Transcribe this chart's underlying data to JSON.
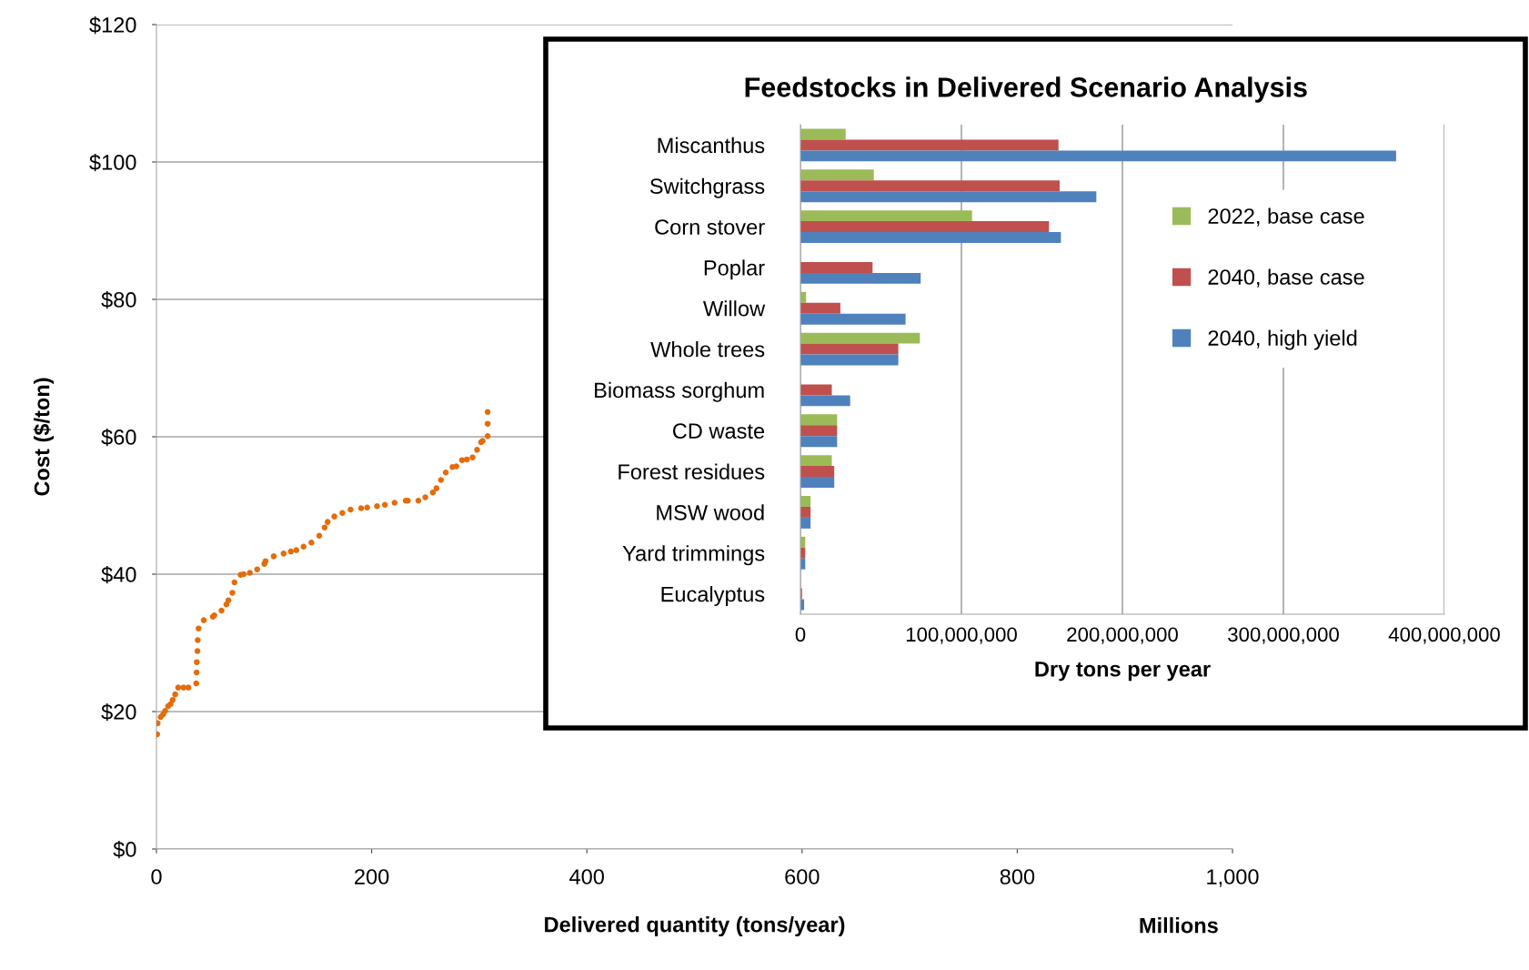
{
  "chart_data": [
    {
      "type": "scatter",
      "xlabel": "Delivered quantity (tons/year)",
      "ylabel": "Cost ($/ton)",
      "annotations": [
        "Millions"
      ],
      "xlim": [
        0,
        1000
      ],
      "ylim": [
        0,
        120
      ],
      "xticks": [
        0,
        200,
        400,
        600,
        800,
        {
          "value": 1000,
          "label": "1,000"
        }
      ],
      "yticks": [
        {
          "value": 0,
          "label": "$0"
        },
        {
          "value": 20,
          "label": "$20"
        },
        {
          "value": 40,
          "label": "$40"
        },
        {
          "value": 60,
          "label": "$60"
        },
        {
          "value": 80,
          "label": "$80"
        },
        {
          "value": 100,
          "label": "$100"
        },
        {
          "value": 120,
          "label": "$120"
        }
      ],
      "grid": "y",
      "marker": "circle",
      "legend": false,
      "series": [
        {
          "color": "#e46c0a",
          "x": [
            0.6,
            1.1,
            3.9,
            6.2,
            8.1,
            10.9,
            13.2,
            15.1,
            17.4,
            20.2,
            25.2,
            29.7,
            37.0,
            37.3,
            37.5,
            38.1,
            38.4,
            39.2,
            44.0,
            52.4,
            53.8,
            60.5,
            65.0,
            66.9,
            70.6,
            72.5,
            78.2,
            81.0,
            86.8,
            93.6,
            100.3,
            101.4,
            109.0,
            118.2,
            124.9,
            130.0,
            136.7,
            144.0,
            151.3,
            156.3,
            159.1,
            165.3,
            172.8,
            180.4,
            190.2,
            195.8,
            205.0,
            212.3,
            221.3,
            231.7,
            233.6,
            243.4,
            249.9,
            256.9,
            260.2,
            264.4,
            268.9,
            275.1,
            278.7,
            284.0,
            288.5,
            293.8,
            298.0,
            301.7,
            303.1,
            307.8,
            307.8,
            307.8
          ],
          "values": [
            16.7,
            18.3,
            19.2,
            19.6,
            20.1,
            20.8,
            21.1,
            21.7,
            22.5,
            23.5,
            23.5,
            23.5,
            24.1,
            25.7,
            27.2,
            28.8,
            30.4,
            32.1,
            33.3,
            33.8,
            34.0,
            34.7,
            35.6,
            36.2,
            37.3,
            38.8,
            39.9,
            40.0,
            40.2,
            40.7,
            41.5,
            41.9,
            42.6,
            43.0,
            43.3,
            43.5,
            44.0,
            44.6,
            45.6,
            46.8,
            47.6,
            48.4,
            48.9,
            49.4,
            49.6,
            49.7,
            49.9,
            50.1,
            50.4,
            50.7,
            50.7,
            50.7,
            51.2,
            51.9,
            52.5,
            53.7,
            54.8,
            55.6,
            55.7,
            56.6,
            56.7,
            57.0,
            58.1,
            59.2,
            59.4,
            60.1,
            61.9,
            63.6
          ]
        }
      ]
    },
    {
      "type": "bar",
      "orientation": "horizontal",
      "title": "Feedstocks in Delivered Scenario Analysis",
      "xlabel": "Dry tons per year",
      "categories": [
        "Miscanthus",
        "Switchgrass",
        "Corn stover",
        "Poplar",
        "Willow",
        "Whole trees",
        "Biomass sorghum",
        "CD waste",
        "Forest residues",
        "MSW wood",
        "Yard trimmings",
        "Eucalyptus"
      ],
      "xlim": [
        0,
        400000000
      ],
      "xticks": [
        0,
        {
          "value": 100000000,
          "label": "100,000,000"
        },
        {
          "value": 200000000,
          "label": "200,000,000"
        },
        {
          "value": 300000000,
          "label": "300,000,000"
        },
        {
          "value": 400000000,
          "label": "400,000,000"
        }
      ],
      "grid": "x",
      "legend": "right",
      "series": [
        {
          "name": "2022, base case",
          "color": "#9bbb59",
          "values": [
            28100000,
            45600000,
            106600000,
            0,
            3500000,
            74200000,
            0,
            22800000,
            19500000,
            6300000,
            3000000,
            0
          ]
        },
        {
          "name": "2040, base case",
          "color": "#c0504d",
          "values": [
            160300000,
            161000000,
            154400000,
            44800000,
            24800000,
            60800000,
            19500000,
            22800000,
            21000000,
            6300000,
            3000000,
            1000000
          ]
        },
        {
          "name": "2040, high yield",
          "color": "#4f81bd",
          "values": [
            370000000,
            183800000,
            161800000,
            74700000,
            65300000,
            60800000,
            30900000,
            22800000,
            21000000,
            6300000,
            3000000,
            2300000
          ]
        }
      ]
    }
  ]
}
